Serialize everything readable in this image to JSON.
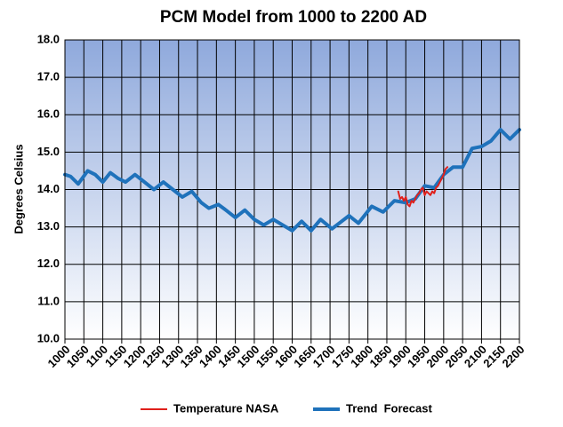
{
  "chart_data": {
    "type": "line",
    "title": "PCM Model from 1000 to 2200 AD",
    "y_label": "Degrees Celsius",
    "xlim": [
      1000,
      2200
    ],
    "xticks": [
      1000,
      1050,
      1100,
      1150,
      1200,
      1250,
      1300,
      1350,
      1400,
      1450,
      1500,
      1550,
      1600,
      1650,
      1700,
      1750,
      1800,
      1850,
      1900,
      1950,
      2000,
      2050,
      2100,
      2150,
      2200
    ],
    "ylim": [
      10,
      18
    ],
    "yticks": [
      {
        "value": 10,
        "label": "10.0"
      },
      {
        "value": 11,
        "label": "11.0"
      },
      {
        "value": 12,
        "label": "12.0"
      },
      {
        "value": 13,
        "label": "13.0"
      },
      {
        "value": 14,
        "label": "14.0"
      },
      {
        "value": 15,
        "label": "15.0"
      },
      {
        "value": 16,
        "label": "16.0"
      },
      {
        "value": 17,
        "label": "17.0"
      },
      {
        "value": 18,
        "label": "18.0"
      }
    ],
    "grid": true,
    "legend": "bottom",
    "series": [
      {
        "name": "Temperature NASA",
        "color": "#e0201b",
        "width": 2,
        "x": [
          1880,
          1885,
          1890,
          1895,
          1900,
          1905,
          1910,
          1915,
          1920,
          1925,
          1930,
          1935,
          1940,
          1945,
          1950,
          1955,
          1960,
          1965,
          1970,
          1975,
          1980,
          1985,
          1990,
          1995,
          2000,
          2005,
          2010
        ],
        "values": [
          13.95,
          13.75,
          13.8,
          13.7,
          13.8,
          13.6,
          13.55,
          13.7,
          13.65,
          13.75,
          13.85,
          13.9,
          14.0,
          14.05,
          13.85,
          13.95,
          13.9,
          13.85,
          13.95,
          13.9,
          14.05,
          14.1,
          14.2,
          14.3,
          14.4,
          14.55,
          14.6
        ]
      },
      {
        "name": "Trend  Forecast",
        "color": "#1f72bb",
        "width": 4,
        "x": [
          1000,
          1015,
          1035,
          1060,
          1080,
          1100,
          1120,
          1140,
          1160,
          1185,
          1210,
          1235,
          1260,
          1285,
          1310,
          1335,
          1360,
          1380,
          1405,
          1425,
          1450,
          1475,
          1500,
          1525,
          1550,
          1575,
          1600,
          1625,
          1650,
          1675,
          1705,
          1750,
          1775,
          1810,
          1840,
          1870,
          1900,
          1925,
          1950,
          1975,
          2000,
          2025,
          2050,
          2075,
          2100,
          2125,
          2150,
          2175,
          2200
        ],
        "values": [
          14.4,
          14.35,
          14.15,
          14.5,
          14.4,
          14.2,
          14.45,
          14.3,
          14.2,
          14.4,
          14.2,
          14.0,
          14.2,
          14.0,
          13.8,
          13.95,
          13.65,
          13.5,
          13.6,
          13.45,
          13.25,
          13.45,
          13.2,
          13.05,
          13.2,
          13.05,
          12.9,
          13.15,
          12.9,
          13.2,
          12.95,
          13.3,
          13.1,
          13.55,
          13.4,
          13.7,
          13.65,
          13.75,
          14.1,
          14.05,
          14.4,
          14.6,
          14.6,
          15.1,
          15.15,
          15.3,
          15.6,
          15.35,
          15.6
        ]
      }
    ]
  }
}
